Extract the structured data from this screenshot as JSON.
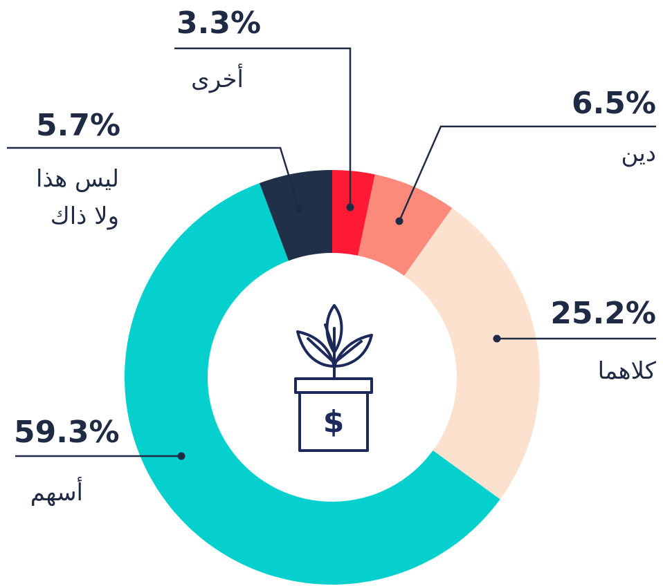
{
  "chart_data": {
    "type": "donut",
    "categories": [
      "أخرى",
      "دين",
      "كلاهما",
      "أسهم",
      "ليس هذا ولا ذاك"
    ],
    "values": [
      3.3,
      6.5,
      25.2,
      59.3,
      5.7
    ],
    "value_labels": [
      "3.3%",
      "6.5%",
      "25.2%",
      "59.3%",
      "5.7%"
    ],
    "colors": [
      "#ff1a35",
      "#fc8a7a",
      "#fde1cf",
      "#06d0ce",
      "#1f3048"
    ]
  }
}
